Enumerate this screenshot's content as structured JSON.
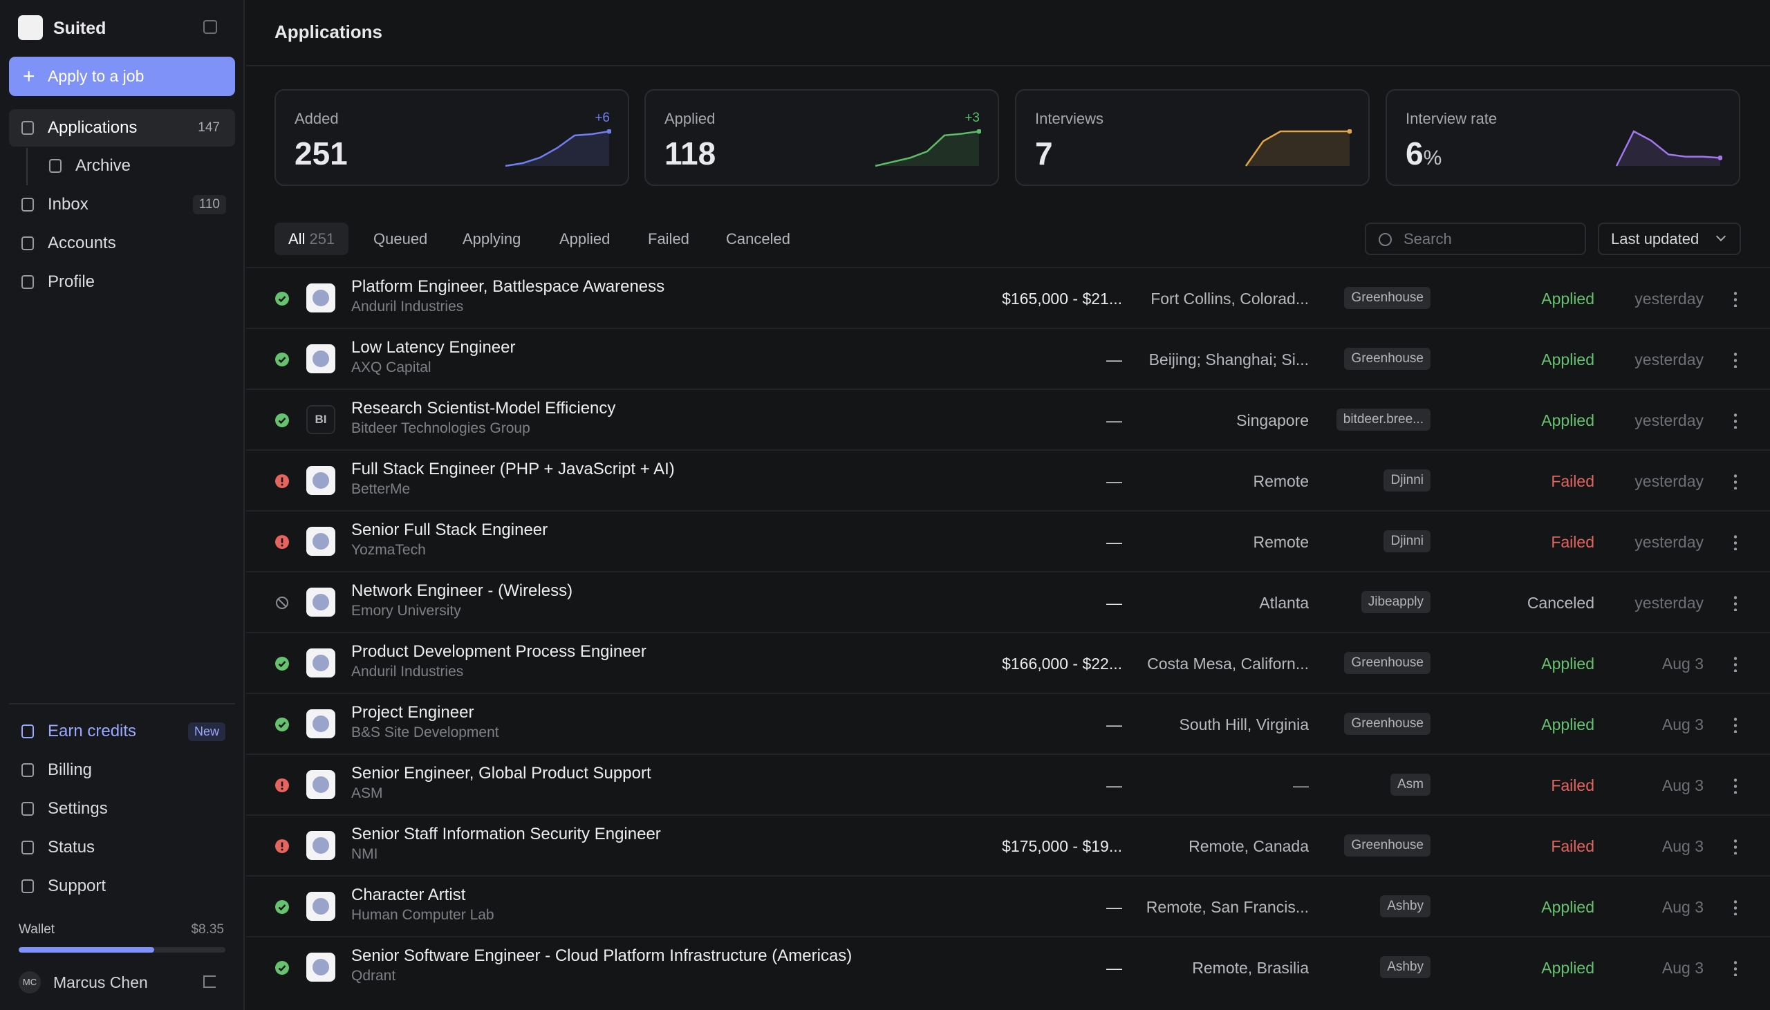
{
  "sidebar": {
    "brand": "Suited",
    "apply_button": "Apply to a job",
    "nav": [
      {
        "label": "Applications",
        "count": 147
      },
      {
        "label": "Archive"
      },
      {
        "label": "Inbox",
        "count": 110
      },
      {
        "label": "Accounts"
      },
      {
        "label": "Profile"
      }
    ],
    "bottom_nav": [
      {
        "label": "Earn credits",
        "badge": "New"
      },
      {
        "label": "Billing"
      },
      {
        "label": "Settings"
      },
      {
        "label": "Status"
      },
      {
        "label": "Support"
      }
    ],
    "wallet": {
      "label": "Wallet",
      "amount": "$8.35"
    },
    "user": {
      "initials": "MC",
      "name": "Marcus Chen"
    }
  },
  "header": {
    "title": "Applications"
  },
  "stats": [
    {
      "label": "Added",
      "value": 251,
      "delta": "+6",
      "color": "#6f7ff0",
      "trend": [
        2,
        6,
        14,
        28,
        46,
        48,
        52
      ]
    },
    {
      "label": "Applied",
      "value": 118,
      "delta": "+3",
      "color": "#5cbf68",
      "trend": [
        2,
        7,
        12,
        20,
        40,
        42,
        45
      ]
    },
    {
      "label": "Interviews",
      "value": 7,
      "color": "#e3a54a",
      "trend": [
        0,
        5,
        7,
        7,
        7,
        7,
        7
      ]
    },
    {
      "label": "Interview rate",
      "value": 6,
      "unit": "%",
      "color": "#a277f0",
      "trend": [
        0,
        30,
        22,
        10,
        8,
        8,
        7
      ]
    }
  ],
  "tabs": [
    {
      "label": "All",
      "count": 251
    },
    {
      "label": "Queued"
    },
    {
      "label": "Applying"
    },
    {
      "label": "Applied"
    },
    {
      "label": "Failed"
    },
    {
      "label": "Canceled"
    }
  ],
  "search_placeholder": "Search",
  "sort": "Last updated",
  "rows": [
    {
      "title": "Platform Engineer, Battlespace Awareness",
      "company": "Anduril Industries",
      "salary": "$165,000 - $21...",
      "location": "Fort Collins, Colorad...",
      "source": "Greenhouse",
      "state": "Applied",
      "updated": "yesterday",
      "status_icon": "check",
      "state_color": "#67c26f"
    },
    {
      "title": "Low Latency Engineer",
      "company": "AXQ Capital",
      "salary": "—",
      "location": "Beijing; Shanghai; Si...",
      "source": "Greenhouse",
      "state": "Applied",
      "updated": "yesterday",
      "status_icon": "check",
      "state_color": "#67c26f"
    },
    {
      "title": "Research Scientist-Model Efficiency",
      "company": "Bitdeer Technologies Group",
      "logo_text": "BI",
      "salary": "—",
      "location": "Singapore",
      "source": "bitdeer.bree...",
      "state": "Applied",
      "updated": "yesterday",
      "status_icon": "check",
      "state_color": "#67c26f"
    },
    {
      "title": "Full Stack Engineer (PHP + JavaScript + AI)",
      "company": "BetterMe",
      "salary": "—",
      "location": "Remote",
      "source": "Djinni",
      "state": "Failed",
      "updated": "yesterday",
      "status_icon": "alert",
      "state_color": "#e5645e"
    },
    {
      "title": "Senior Full Stack Engineer",
      "company": "YozmaTech",
      "salary": "—",
      "location": "Remote",
      "source": "Djinni",
      "state": "Failed",
      "updated": "yesterday",
      "status_icon": "alert",
      "state_color": "#e5645e"
    },
    {
      "title": "Network Engineer - (Wireless)",
      "company": "Emory University",
      "salary": "—",
      "location": "Atlanta",
      "source": "Jibeapply",
      "state": "Canceled",
      "updated": "yesterday",
      "status_icon": "ban",
      "state_color": "#b9babf"
    },
    {
      "title": "Product Development Process Engineer",
      "company": "Anduril Industries",
      "salary": "$166,000 - $22...",
      "location": "Costa Mesa, Californ...",
      "source": "Greenhouse",
      "state": "Applied",
      "updated": "Aug 3",
      "status_icon": "check",
      "state_color": "#67c26f"
    },
    {
      "title": "Project Engineer",
      "company": "B&S Site Development",
      "salary": "—",
      "location": "South Hill, Virginia",
      "source": "Greenhouse",
      "state": "Applied",
      "updated": "Aug 3",
      "status_icon": "check",
      "state_color": "#67c26f"
    },
    {
      "title": "Senior Engineer, Global Product Support",
      "company": "ASM",
      "salary": "—",
      "location": "—",
      "source": "Asm",
      "state": "Failed",
      "updated": "Aug 3",
      "status_icon": "alert",
      "state_color": "#e5645e"
    },
    {
      "title": "Senior Staff Information Security Engineer",
      "company": "NMI",
      "salary": "$175,000 - $19...",
      "location": "Remote, Canada",
      "source": "Greenhouse",
      "state": "Failed",
      "updated": "Aug 3",
      "status_icon": "alert",
      "state_color": "#e5645e"
    },
    {
      "title": "Character Artist",
      "company": "Human Computer Lab",
      "salary": "—",
      "location": "Remote, San Francis...",
      "source": "Ashby",
      "state": "Applied",
      "updated": "Aug 3",
      "status_icon": "check",
      "state_color": "#67c26f"
    },
    {
      "title": "Senior Software Engineer - Cloud Platform Infrastructure (Americas)",
      "company": "Qdrant",
      "salary": "—",
      "location": "Remote, Brasilia",
      "source": "Ashby",
      "state": "Applied",
      "updated": "Aug 3",
      "status_icon": "check",
      "state_color": "#67c26f"
    }
  ]
}
